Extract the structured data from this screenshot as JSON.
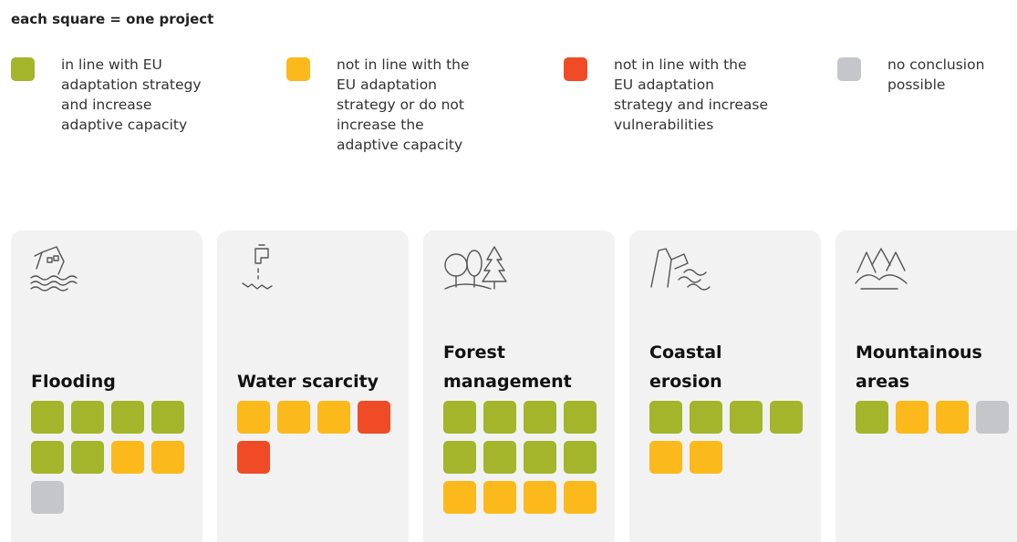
{
  "title": "each square = one project",
  "legend": [
    {
      "color": "#a3b52a",
      "lines": [
        "in line with EU",
        "adaptation strategy",
        "and increase",
        "adaptive capacity"
      ]
    },
    {
      "color": "#fbb91b",
      "lines": [
        "not in line with the",
        "EU adaptation",
        "strategy or do not",
        "increase the",
        "adaptive capacity"
      ]
    },
    {
      "color": "#ef4b26",
      "lines": [
        "not in line with the",
        "EU adaptation",
        "strategy and increase",
        "vulnerabilities"
      ]
    },
    {
      "color": "#c5c6c9",
      "lines": [
        "no conclusion",
        "possible"
      ]
    }
  ],
  "cards": [
    {
      "lines": [
        "Flooding"
      ],
      "counts": [
        6,
        2,
        0,
        1
      ]
    },
    {
      "lines": [
        "Water scarcity"
      ],
      "counts": [
        0,
        3,
        2,
        0
      ]
    },
    {
      "lines": [
        "Forest",
        "management"
      ],
      "counts": [
        8,
        4,
        0,
        0
      ]
    },
    {
      "lines": [
        "Coastal",
        "erosion"
      ],
      "counts": [
        4,
        2,
        0,
        0
      ]
    },
    {
      "lines": [
        "Mountainous",
        "areas"
      ],
      "counts": [
        1,
        2,
        0,
        1
      ]
    }
  ]
}
